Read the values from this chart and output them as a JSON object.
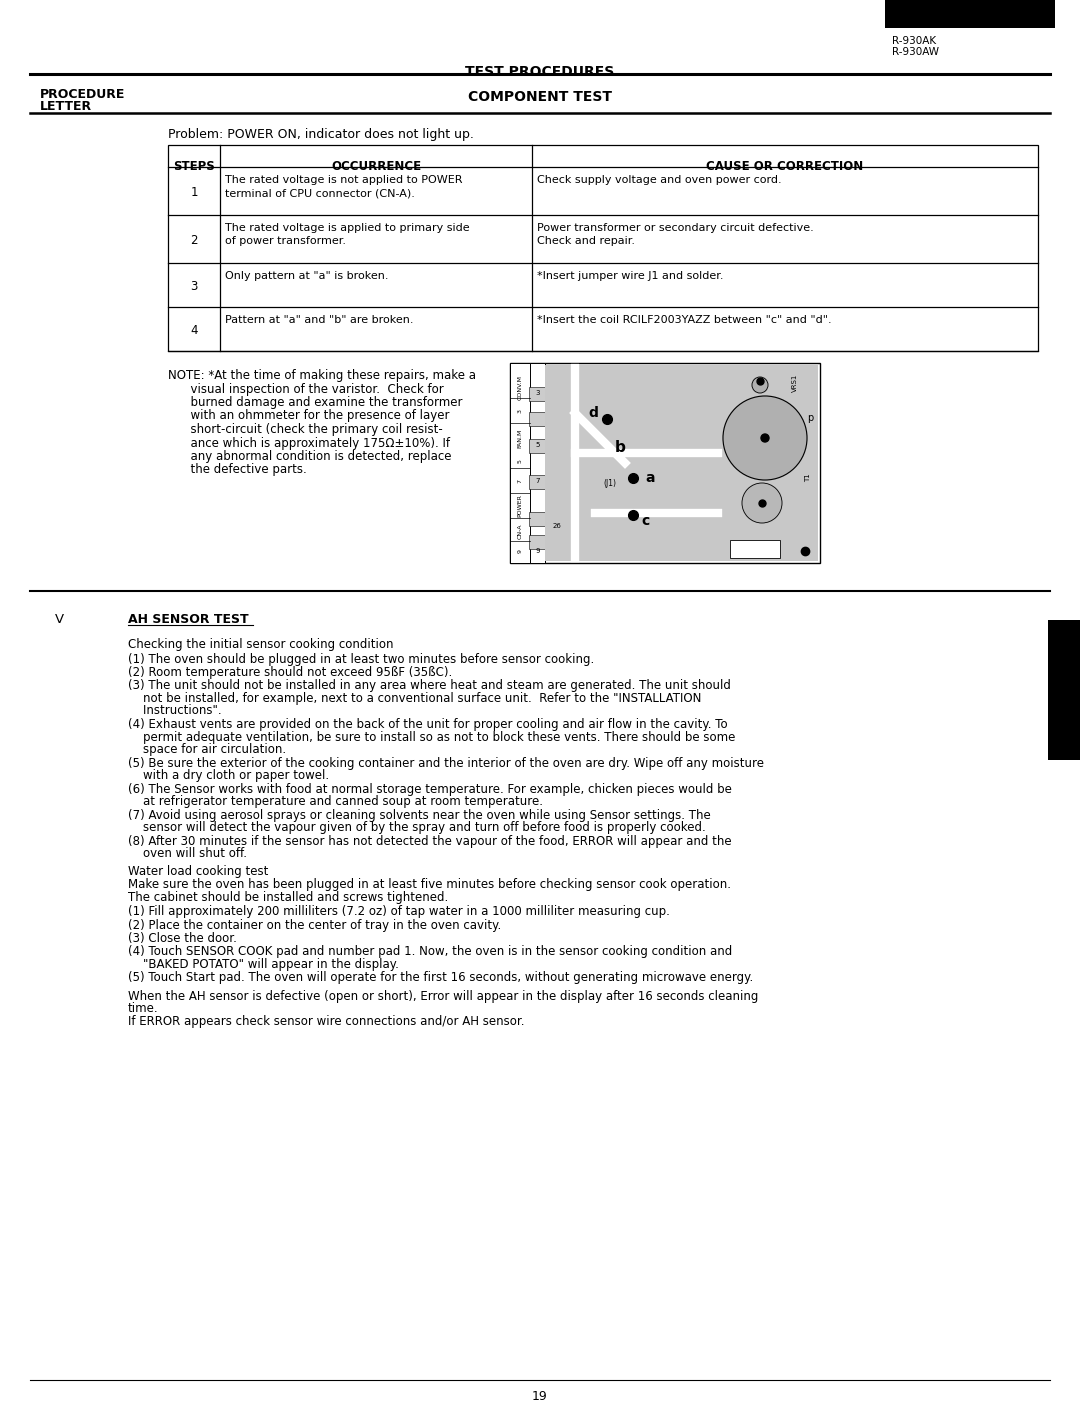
{
  "page_title": "TEST PROCEDURES",
  "procedure_label_line1": "PROCEDURE",
  "procedure_label_line2": "LETTER",
  "component_test": "COMPONENT TEST",
  "model_numbers": [
    "R-930AK",
    "R-930AW"
  ],
  "problem_statement": "Problem: POWER ON, indicator does not light up.",
  "table_headers": [
    "STEPS",
    "OCCURRENCE",
    "CAUSE OR CORRECTION"
  ],
  "table_rows": [
    {
      "step": "1",
      "occ_lines": [
        "The rated voltage is not applied to POWER",
        "terminal of CPU connector (CN-A)."
      ],
      "corr_lines": [
        "Check supply voltage and oven power cord."
      ]
    },
    {
      "step": "2",
      "occ_lines": [
        "The rated voltage is applied to primary side",
        "of power transformer."
      ],
      "corr_lines": [
        "Power transformer or secondary circuit defective.",
        "Check and repair."
      ]
    },
    {
      "step": "3",
      "occ_lines": [
        "Only pattern at \"a\" is broken."
      ],
      "corr_lines": [
        "*Insert jumper wire J1 and solder."
      ]
    },
    {
      "step": "4",
      "occ_lines": [
        "Pattern at \"a\" and \"b\" are broken."
      ],
      "corr_lines": [
        "*Insert the coil RCILF2003YAZZ between \"c\" and \"d\"."
      ]
    }
  ],
  "note_lines": [
    "NOTE: *At the time of making these repairs, make a",
    "      visual inspection of the varistor.  Check for",
    "      burned damage and examine the transformer",
    "      with an ohmmeter for the presence of layer",
    "      short-circuit (check the primary coil resist-",
    "      ance which is approximately 175Ω±10%). If",
    "      any abnormal condition is detected, replace",
    "      the defective parts."
  ],
  "section_v": "V",
  "section_title": "AH SENSOR TEST",
  "section_intro": "Checking the initial sensor cooking condition",
  "sensor_items": [
    [
      "(1) The oven should be plugged in at least two minutes before sensor cooking."
    ],
    [
      "(2) Room temperature should not exceed 95ßF (35ßC)."
    ],
    [
      "(3) The unit should not be installed in any area where heat and steam are generated. The unit should",
      "    not be installed, for example, next to a conventional surface unit.  Refer to the \"INSTALLATION",
      "    Instructions\"."
    ],
    [
      "(4) Exhaust vents are provided on the back of the unit for proper cooling and air flow in the cavity. To",
      "    permit adequate ventilation, be sure to install so as not to block these vents. There should be some",
      "    space for air circulation."
    ],
    [
      "(5) Be sure the exterior of the cooking container and the interior of the oven are dry. Wipe off any moisture",
      "    with a dry cloth or paper towel."
    ],
    [
      "(6) The Sensor works with food at normal storage temperature. For example, chicken pieces would be",
      "    at refrigerator temperature and canned soup at room temperature."
    ],
    [
      "(7) Avoid using aerosol sprays or cleaning solvents near the oven while using Sensor settings. The",
      "    sensor will detect the vapour given of by the spray and turn off before food is properly cooked."
    ],
    [
      "(8) After 30 minutes if the sensor has not detected the vapour of the food, ERROR will appear and the",
      "    oven will shut off."
    ]
  ],
  "water_load_title": "Water load cooking test",
  "water_load_intro": [
    "Make sure the oven has been plugged in at least five minutes before checking sensor cook operation.",
    "The cabinet should be installed and screws tightened."
  ],
  "water_load_items": [
    [
      "(1) Fill approximately 200 milliliters (7.2 oz) of tap water in a 1000 milliliter measuring cup."
    ],
    [
      "(2) Place the container on the center of tray in the oven cavity."
    ],
    [
      "(3) Close the door."
    ],
    [
      "(4) Touch SENSOR COOK pad and number pad 1. Now, the oven is in the sensor cooking condition and",
      "    \"BAKED POTATO\" will appear in the display."
    ],
    [
      "(5) Touch Start pad. The oven will operate for the first 16 seconds, without generating microwave energy."
    ]
  ],
  "final_lines": [
    "When the AH sensor is defective (open or short), Error will appear in the display after 16 seconds cleaning",
    "time.",
    "If ERROR appears check sensor wire connections and/or AH sensor."
  ],
  "page_number": "19"
}
